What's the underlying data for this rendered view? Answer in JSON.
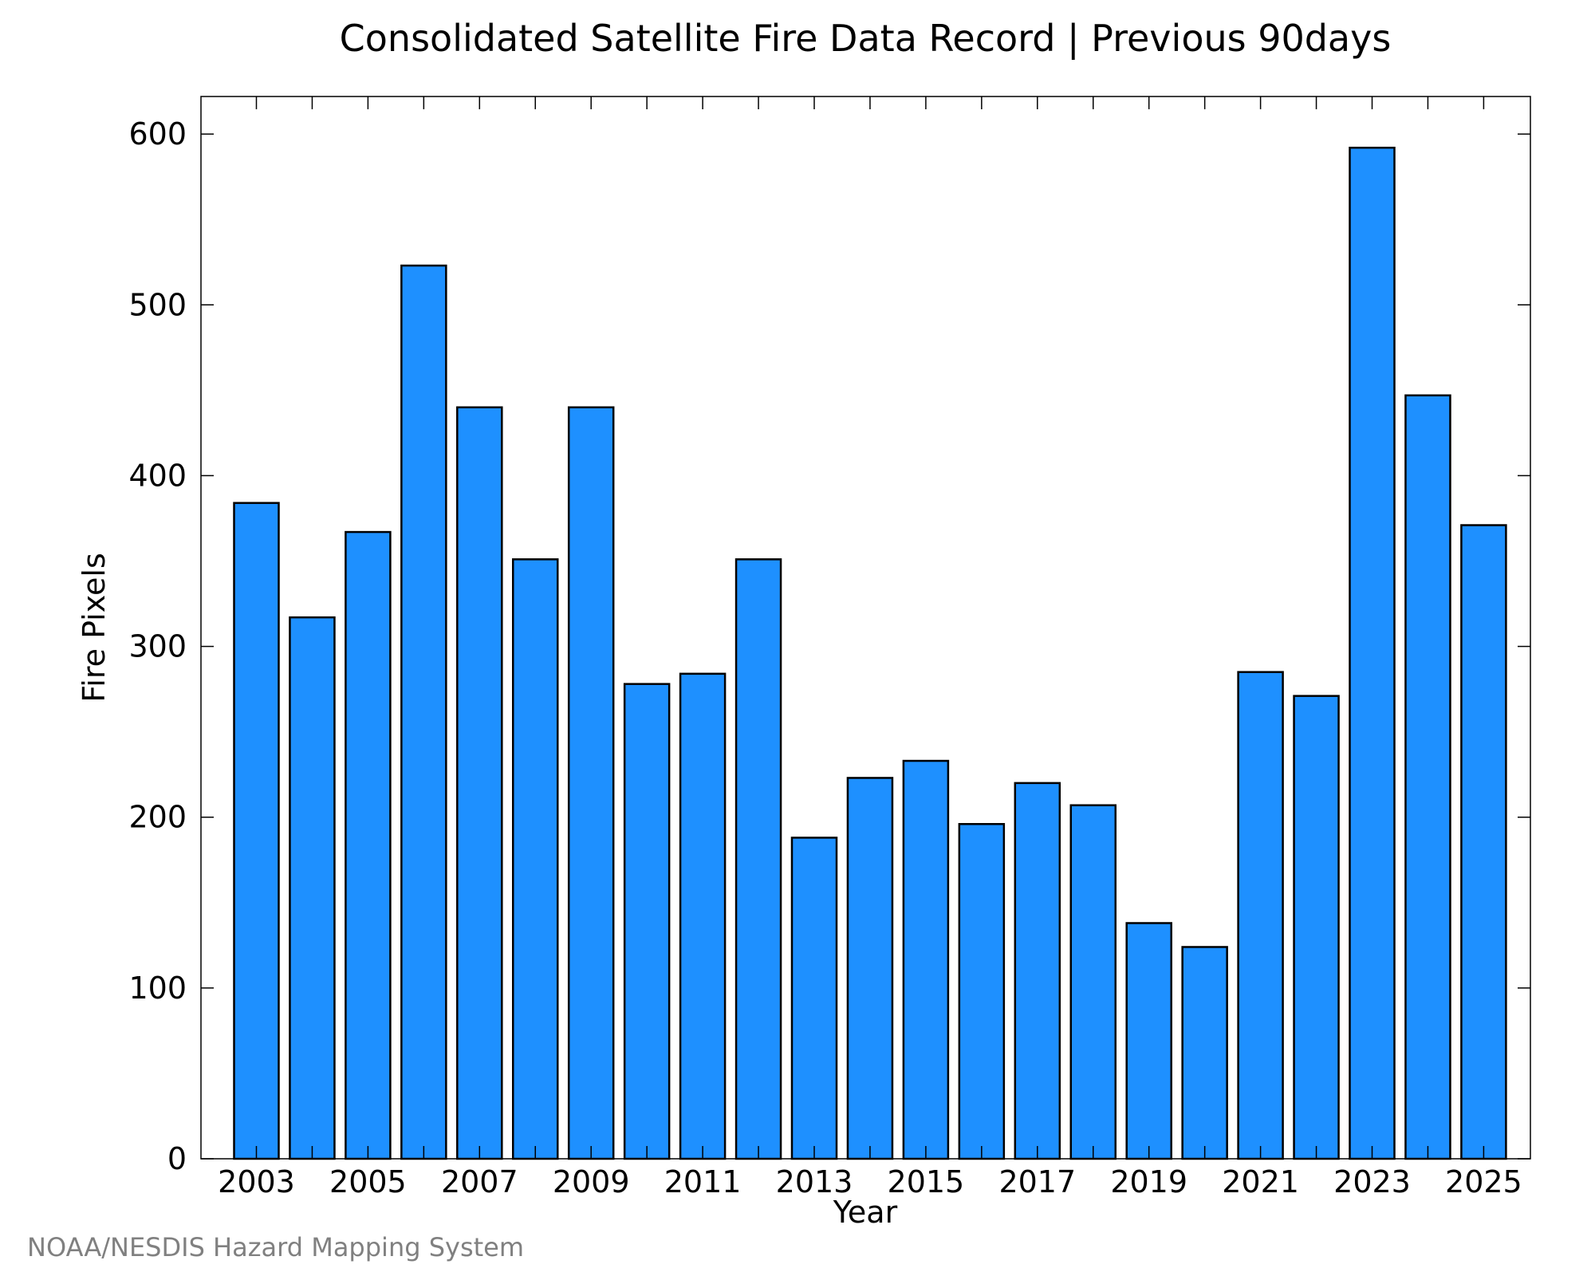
{
  "chart_data": {
    "type": "bar",
    "title": "Consolidated Satellite Fire Data Record | Previous 90days",
    "xlabel": "Year",
    "ylabel": "Fire Pixels",
    "categories": [
      "2003",
      "2004",
      "2005",
      "2006",
      "2007",
      "2008",
      "2009",
      "2010",
      "2011",
      "2012",
      "2013",
      "2014",
      "2015",
      "2016",
      "2017",
      "2018",
      "2019",
      "2020",
      "2021",
      "2022",
      "2023",
      "2024",
      "2025"
    ],
    "values": [
      384,
      317,
      367,
      523,
      440,
      351,
      440,
      278,
      284,
      351,
      188,
      223,
      233,
      196,
      220,
      207,
      138,
      124,
      285,
      271,
      592,
      447,
      371
    ],
    "x_tick_labels": [
      "2003",
      "2005",
      "2007",
      "2009",
      "2011",
      "2013",
      "2015",
      "2017",
      "2019",
      "2021",
      "2023",
      "2025"
    ],
    "y_ticks": [
      0,
      100,
      200,
      300,
      400,
      500,
      600
    ],
    "ylim": [
      0,
      622
    ],
    "grid": false,
    "legend": "none",
    "bar_color": "#1e90ff",
    "bar_edge_color": "#000000"
  },
  "credit": "NOAA/NESDIS Hazard Mapping System"
}
